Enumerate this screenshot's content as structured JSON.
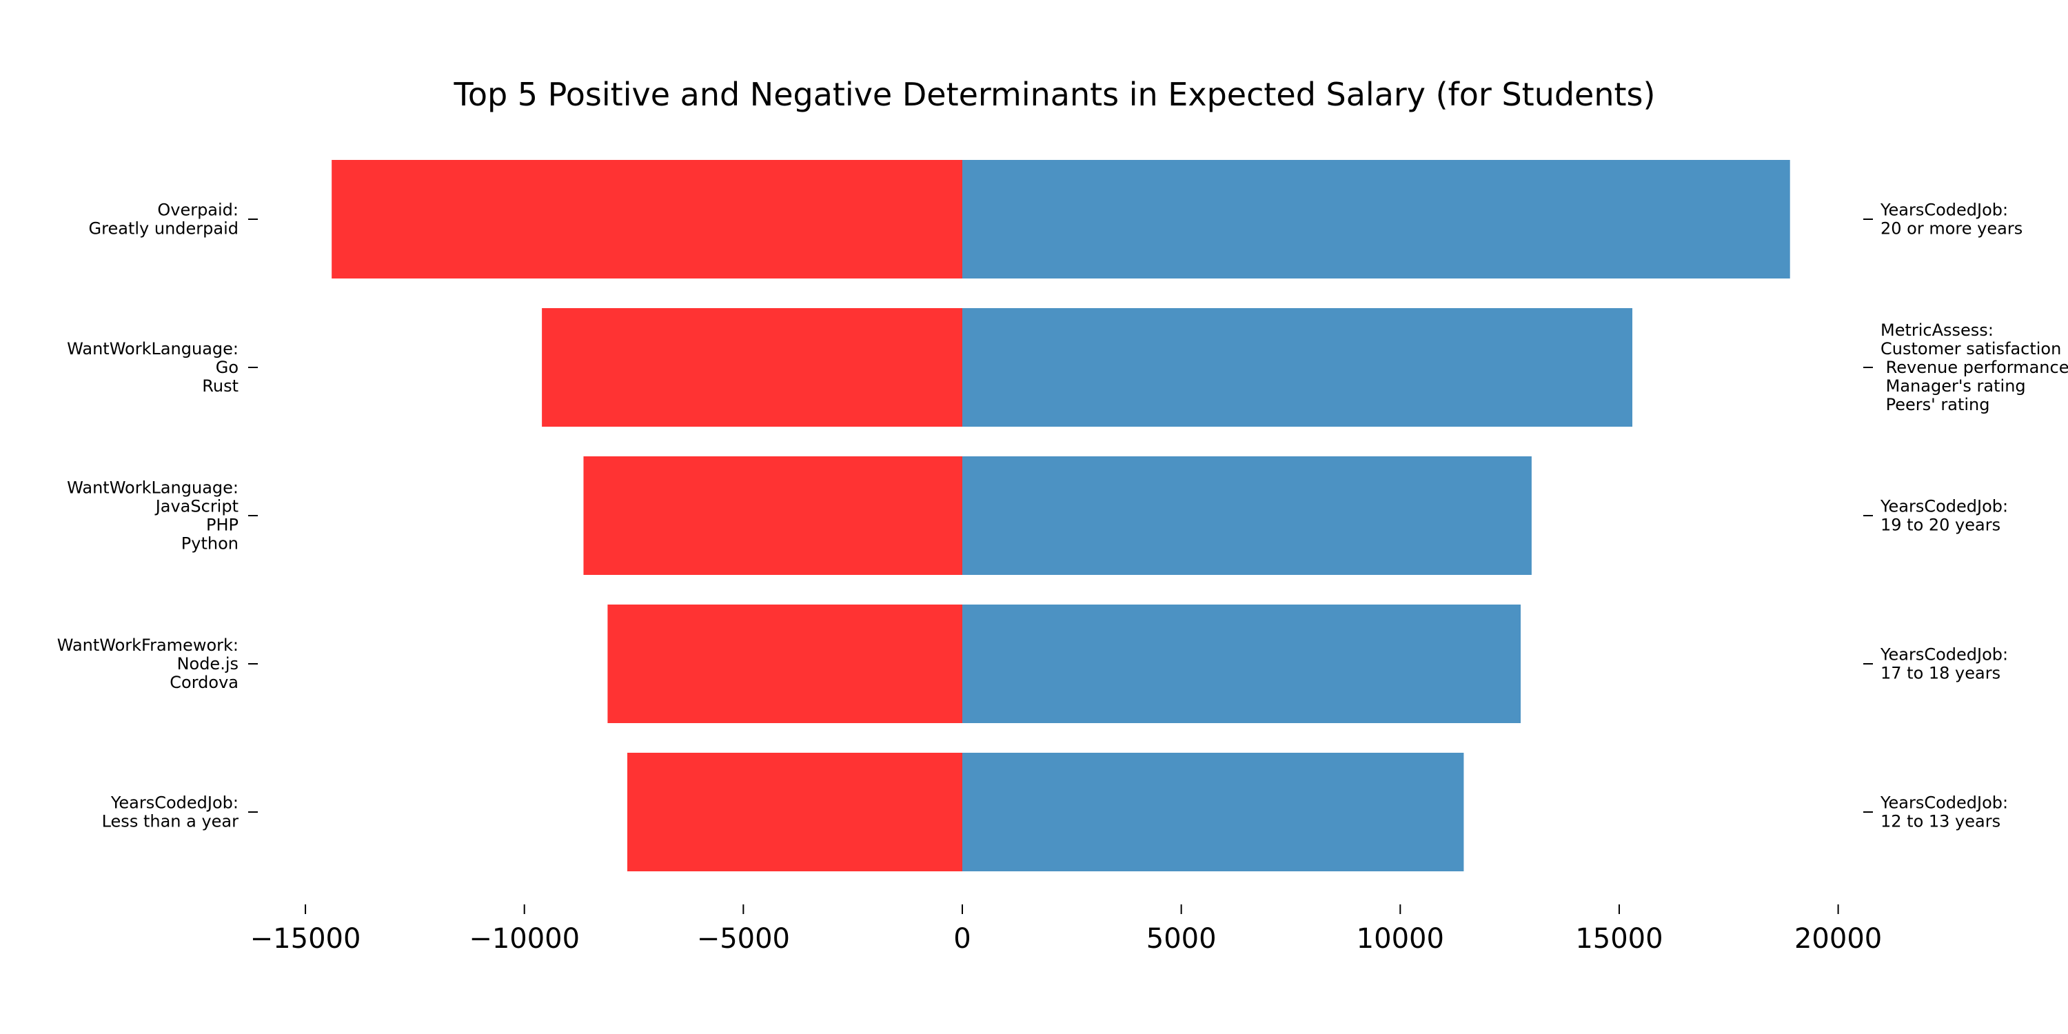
{
  "chart_data": {
    "type": "bar",
    "orientation": "horizontal",
    "title": "Top 5 Positive and Negative Determinants in Expected Salary (for Students)",
    "xlabel": "",
    "ylabel": "",
    "xlim": [
      -16000,
      20000
    ],
    "x_ticks": [
      -15000,
      -10000,
      -5000,
      0,
      5000,
      10000,
      15000,
      20000
    ],
    "x_tick_labels": [
      "−15000",
      "−10000",
      "−5000",
      "0",
      "5000",
      "10000",
      "15000",
      "20000"
    ],
    "grid": false,
    "colors": {
      "negative": "#ff3333",
      "positive": "#4c92c3"
    },
    "negative": {
      "categories": [
        "Overpaid:\nGreatly underpaid",
        "WantWorkLanguage:\nGo\nRust",
        "WantWorkLanguage:\nJavaScript\nPHP\nPython",
        "WantWorkFramework:\nNode.js\nCordova",
        "YearsCodedJob:\nLess than a year"
      ],
      "values": [
        -14400,
        -9600,
        -8650,
        -8100,
        -7650
      ]
    },
    "positive": {
      "categories": [
        "YearsCodedJob:\n20 or more years",
        "MetricAssess:\nCustomer satisfaction\n Revenue performance\n Manager's rating\n Peers' rating",
        "YearsCodedJob:\n19 to 20 years",
        "YearsCodedJob:\n17 to 18 years",
        "YearsCodedJob:\n12 to 13 years"
      ],
      "values": [
        18900,
        15300,
        13000,
        12750,
        11450
      ]
    }
  }
}
